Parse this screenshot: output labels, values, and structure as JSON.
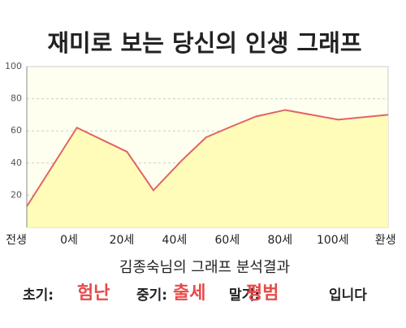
{
  "chart_data": {
    "type": "area",
    "title": "재미로 보는 당신의 인생 그래프",
    "x": [
      -16,
      3,
      22,
      32,
      43,
      52,
      62,
      71,
      82,
      102,
      121
    ],
    "values": [
      13,
      62,
      47,
      23,
      42,
      56,
      63,
      69,
      73,
      67,
      70
    ],
    "color": "#e06464",
    "fill": "#fffbb8",
    "xlim": [
      -16,
      121
    ],
    "xticks": [
      {
        "value": -20,
        "label": "전생"
      },
      {
        "value": 0,
        "label": "0세"
      },
      {
        "value": 20,
        "label": "20세"
      },
      {
        "value": 40,
        "label": "40세"
      },
      {
        "value": 60,
        "label": "60세"
      },
      {
        "value": 80,
        "label": "80세"
      },
      {
        "value": 100,
        "label": "100세"
      },
      {
        "value": 120,
        "label": "환생"
      }
    ],
    "ylim": [
      0,
      100
    ],
    "yticks": [
      20,
      40,
      60,
      80,
      100
    ],
    "grid": true
  },
  "result": {
    "heading": "김종숙님의 그래프 분석결과",
    "items": [
      {
        "label": "초기:",
        "value": "험난"
      },
      {
        "label": "중기:",
        "value": "출세"
      },
      {
        "label": "말기:",
        "value": "평범"
      }
    ],
    "suffix": "입니다"
  }
}
